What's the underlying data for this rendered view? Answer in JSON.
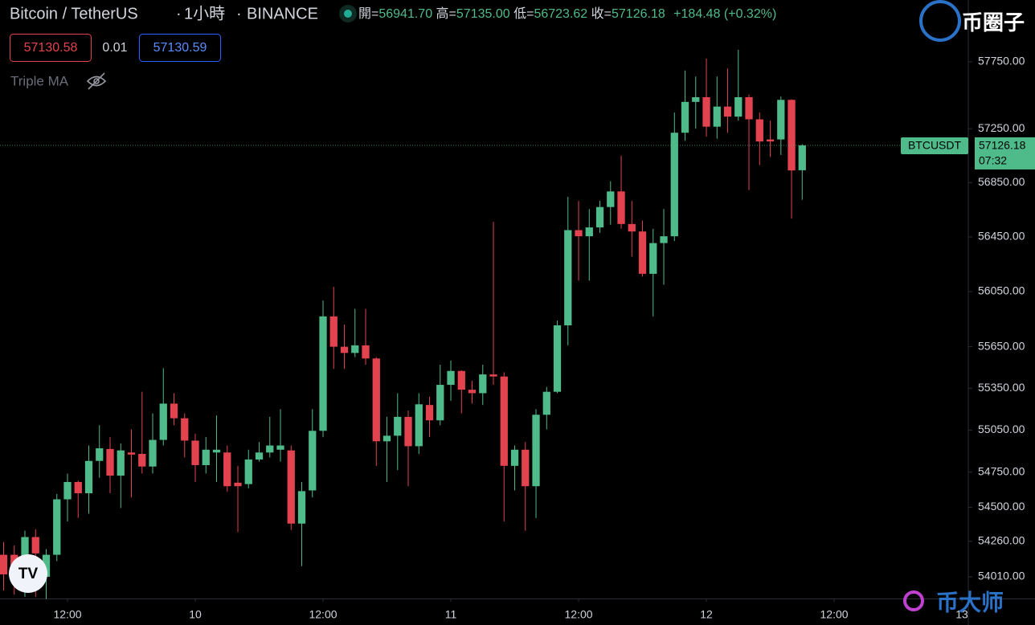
{
  "chart_data": {
    "type": "candlestick",
    "title": "Bitcoin / TetherUS",
    "interval": "1小時",
    "exchange": "BINANCE",
    "ohlc_legend": {
      "open_label": "開=",
      "open": "56941.70",
      "high_label": "高=",
      "high": "57135.00",
      "low_label": "低=",
      "low": "56723.62",
      "close_label": "收=",
      "close": "57126.18",
      "change": "+184.48 (+0.32%)"
    },
    "sell_price": "57130.58",
    "spread": "0.01",
    "buy_price": "57130.59",
    "indicator": "Triple MA",
    "symbol_label": "BTCUSDT",
    "countdown": "07:32",
    "watermarks": [
      "币圈子",
      "币大师"
    ],
    "up_color": "#4fbb8a",
    "down_color": "#e2434f",
    "log_scale": true,
    "x": [
      0,
      1,
      2,
      3,
      4,
      5,
      6,
      7,
      8,
      9,
      10,
      11,
      12,
      13,
      14,
      15,
      16,
      17,
      18,
      19,
      20,
      21,
      22,
      23,
      24,
      25,
      26,
      27,
      28,
      29,
      30,
      31,
      32,
      33,
      34,
      35,
      36,
      37,
      38,
      39,
      40,
      41,
      42,
      43,
      44,
      45,
      46,
      47,
      48,
      49,
      50,
      51,
      52,
      53,
      54,
      55,
      56,
      57,
      58,
      59,
      60,
      61,
      62,
      63,
      64,
      65,
      66,
      67,
      68,
      69,
      70,
      71,
      72,
      73,
      74,
      75
    ],
    "open": [
      54165,
      54165,
      54120,
      54290,
      54010,
      54165,
      54557,
      54680,
      54600,
      54830,
      54915,
      54725,
      54890,
      54880,
      54790,
      54980,
      55240,
      55135,
      54975,
      54800,
      54890,
      54890,
      54675,
      54665,
      54840,
      54890,
      54910,
      54905,
      54385,
      54620,
      55045,
      55870,
      55650,
      55605,
      55660,
      55565,
      54970,
      55010,
      55145,
      54935,
      55230,
      55120,
      55375,
      55475,
      55340,
      55315,
      55450,
      55435,
      54795,
      54910,
      54650,
      55160,
      55325,
      55805,
      56500,
      56455,
      56520,
      56670,
      56785,
      56545,
      56490,
      56180,
      56405,
      56455,
      57220,
      57450,
      57485,
      57265,
      57415,
      57340,
      57485,
      57320,
      57170,
      57170,
      57465,
      56941.7
    ],
    "high": [
      54255,
      54230,
      54335,
      54345,
      54205,
      54595,
      54740,
      54690,
      54940,
      55085,
      55000,
      54955,
      55055,
      55325,
      55170,
      55495,
      55315,
      55170,
      55025,
      55000,
      55155,
      54940,
      54795,
      54910,
      54965,
      55145,
      55200,
      54940,
      54680,
      55200,
      55985,
      56085,
      55810,
      55925,
      55925,
      55575,
      55145,
      55315,
      55190,
      55315,
      55290,
      55520,
      55550,
      55480,
      55405,
      55520,
      56560,
      55465,
      54940,
      54965,
      55200,
      55360,
      55840,
      56745,
      56715,
      56655,
      56715,
      56860,
      57050,
      56715,
      56570,
      56510,
      56655,
      57370,
      57685,
      57640,
      57775,
      57640,
      57700,
      57840,
      57505,
      57370,
      57310,
      57490,
      57470,
      57135
    ],
    "low": [
      53915,
      53885,
      53870,
      53870,
      53855,
      54120,
      54400,
      54425,
      54455,
      54710,
      54600,
      54495,
      54570,
      54740,
      54740,
      54940,
      55085,
      54855,
      54680,
      54740,
      54680,
      54610,
      54325,
      54635,
      54825,
      54855,
      54825,
      54340,
      54085,
      54570,
      55000,
      55490,
      55490,
      55575,
      55520,
      54795,
      54680,
      54765,
      54650,
      54880,
      55000,
      55085,
      55260,
      55170,
      55240,
      55230,
      55375,
      54400,
      54620,
      54335,
      54425,
      55055,
      55315,
      55660,
      56130,
      56130,
      56480,
      56540,
      56510,
      56305,
      56160,
      55870,
      56100,
      56420,
      57160,
      57250,
      57190,
      57175,
      57220,
      57310,
      56795,
      56980,
      57040,
      57055,
      56585,
      56723.62
    ],
    "close": [
      54027,
      54045,
      54290,
      54175,
      54165,
      54557,
      54680,
      54600,
      54830,
      54920,
      54725,
      54905,
      54875,
      54790,
      54980,
      55240,
      55135,
      54975,
      54800,
      54910,
      54910,
      54650,
      54650,
      54840,
      54890,
      54940,
      54940,
      54385,
      54615,
      55045,
      55870,
      55650,
      55605,
      55660,
      55565,
      54970,
      55010,
      55145,
      54935,
      55235,
      55120,
      55375,
      55475,
      55340,
      55315,
      55450,
      55435,
      54795,
      54910,
      54650,
      55160,
      55325,
      55805,
      56500,
      56455,
      56520,
      56670,
      56785,
      56545,
      56490,
      56180,
      56405,
      56455,
      57220,
      57450,
      57485,
      57265,
      57415,
      57340,
      57485,
      57320,
      57155,
      57155,
      57465,
      56940,
      57126.18
    ],
    "xlim": [
      -0.34,
      90.6
    ],
    "xticks": [
      {
        "value": 6,
        "label": "12:00"
      },
      {
        "value": 18,
        "label": "10"
      },
      {
        "value": 30,
        "label": "12:00"
      },
      {
        "value": 42,
        "label": "11"
      },
      {
        "value": 54,
        "label": "12:00"
      },
      {
        "value": 66,
        "label": "12"
      },
      {
        "value": 78,
        "label": "12:00"
      },
      {
        "value": 90,
        "label": "13"
      }
    ],
    "ylim": [
      53858,
      58216
    ],
    "yticks": [
      {
        "value": 54010,
        "label": "54010.00"
      },
      {
        "value": 54260,
        "label": "54260.00"
      },
      {
        "value": 54500,
        "label": "54500.00"
      },
      {
        "value": 54750,
        "label": "54750.00"
      },
      {
        "value": 55050,
        "label": "55050.00"
      },
      {
        "value": 55350,
        "label": "55350.00"
      },
      {
        "value": 55650,
        "label": "55650.00"
      },
      {
        "value": 56050,
        "label": "56050.00"
      },
      {
        "value": 56450,
        "label": "56450.00"
      },
      {
        "value": 56850,
        "label": "56850.00"
      },
      {
        "value": 57250,
        "label": "57250.00"
      },
      {
        "value": 57750,
        "label": "57750.00"
      }
    ]
  }
}
